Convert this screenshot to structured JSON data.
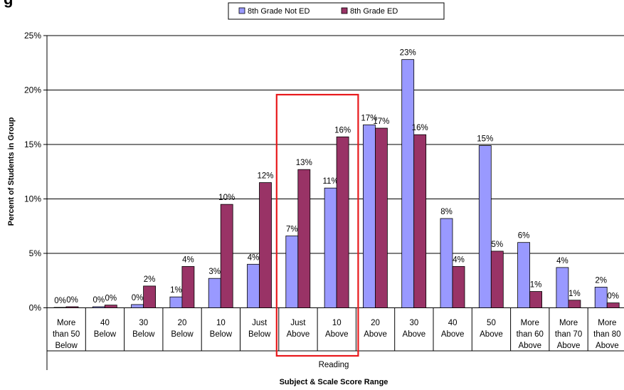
{
  "chart_data": {
    "type": "bar",
    "title_fragment": "g",
    "xlabel": "Subject & Scale Score Range",
    "ylabel": "Percent of Students in Group",
    "group_label": "Reading",
    "ylim": [
      0,
      25
    ],
    "yticks": [
      "0%",
      "5%",
      "10%",
      "15%",
      "20%",
      "25%"
    ],
    "grid": true,
    "legend_position": "top-center",
    "highlight_categories": [
      6,
      7
    ],
    "highlight_color": "#e8191c",
    "categories": [
      [
        "More",
        "than 50",
        "Below"
      ],
      [
        "40",
        "Below"
      ],
      [
        "30",
        "Below"
      ],
      [
        "20",
        "Below"
      ],
      [
        "10",
        "Below"
      ],
      [
        "Just",
        "Below"
      ],
      [
        "Just",
        "Above"
      ],
      [
        "10",
        "Above"
      ],
      [
        "20",
        "Above"
      ],
      [
        "30",
        "Above"
      ],
      [
        "40",
        "Above"
      ],
      [
        "50",
        "Above"
      ],
      [
        "More",
        "than 60",
        "Above"
      ],
      [
        "More",
        "than 70",
        "Above"
      ],
      [
        "More",
        "than 80",
        "Above"
      ]
    ],
    "series": [
      {
        "name": "8th Grade Not ED",
        "color": "#9999ff",
        "values": [
          0.0,
          0.1,
          0.3,
          1.0,
          2.7,
          4.0,
          6.6,
          11.0,
          16.8,
          22.8,
          8.2,
          14.9,
          6.0,
          3.7,
          1.9
        ],
        "labels": [
          "0%",
          "0%",
          "0%",
          "1%",
          "3%",
          "4%",
          "7%",
          "11%",
          "17%",
          "23%",
          "8%",
          "15%",
          "6%",
          "4%",
          "2%"
        ]
      },
      {
        "name": "8th Grade ED",
        "color": "#993366",
        "values": [
          0.1,
          0.25,
          2.0,
          3.8,
          9.5,
          11.5,
          12.7,
          15.7,
          16.5,
          15.9,
          3.8,
          5.2,
          1.5,
          0.7,
          0.45
        ],
        "labels": [
          "0%",
          "0%",
          "2%",
          "4%",
          "10%",
          "12%",
          "13%",
          "16%",
          "17%",
          "16%",
          "4%",
          "5%",
          "1%",
          "1%",
          "0%"
        ]
      }
    ]
  }
}
